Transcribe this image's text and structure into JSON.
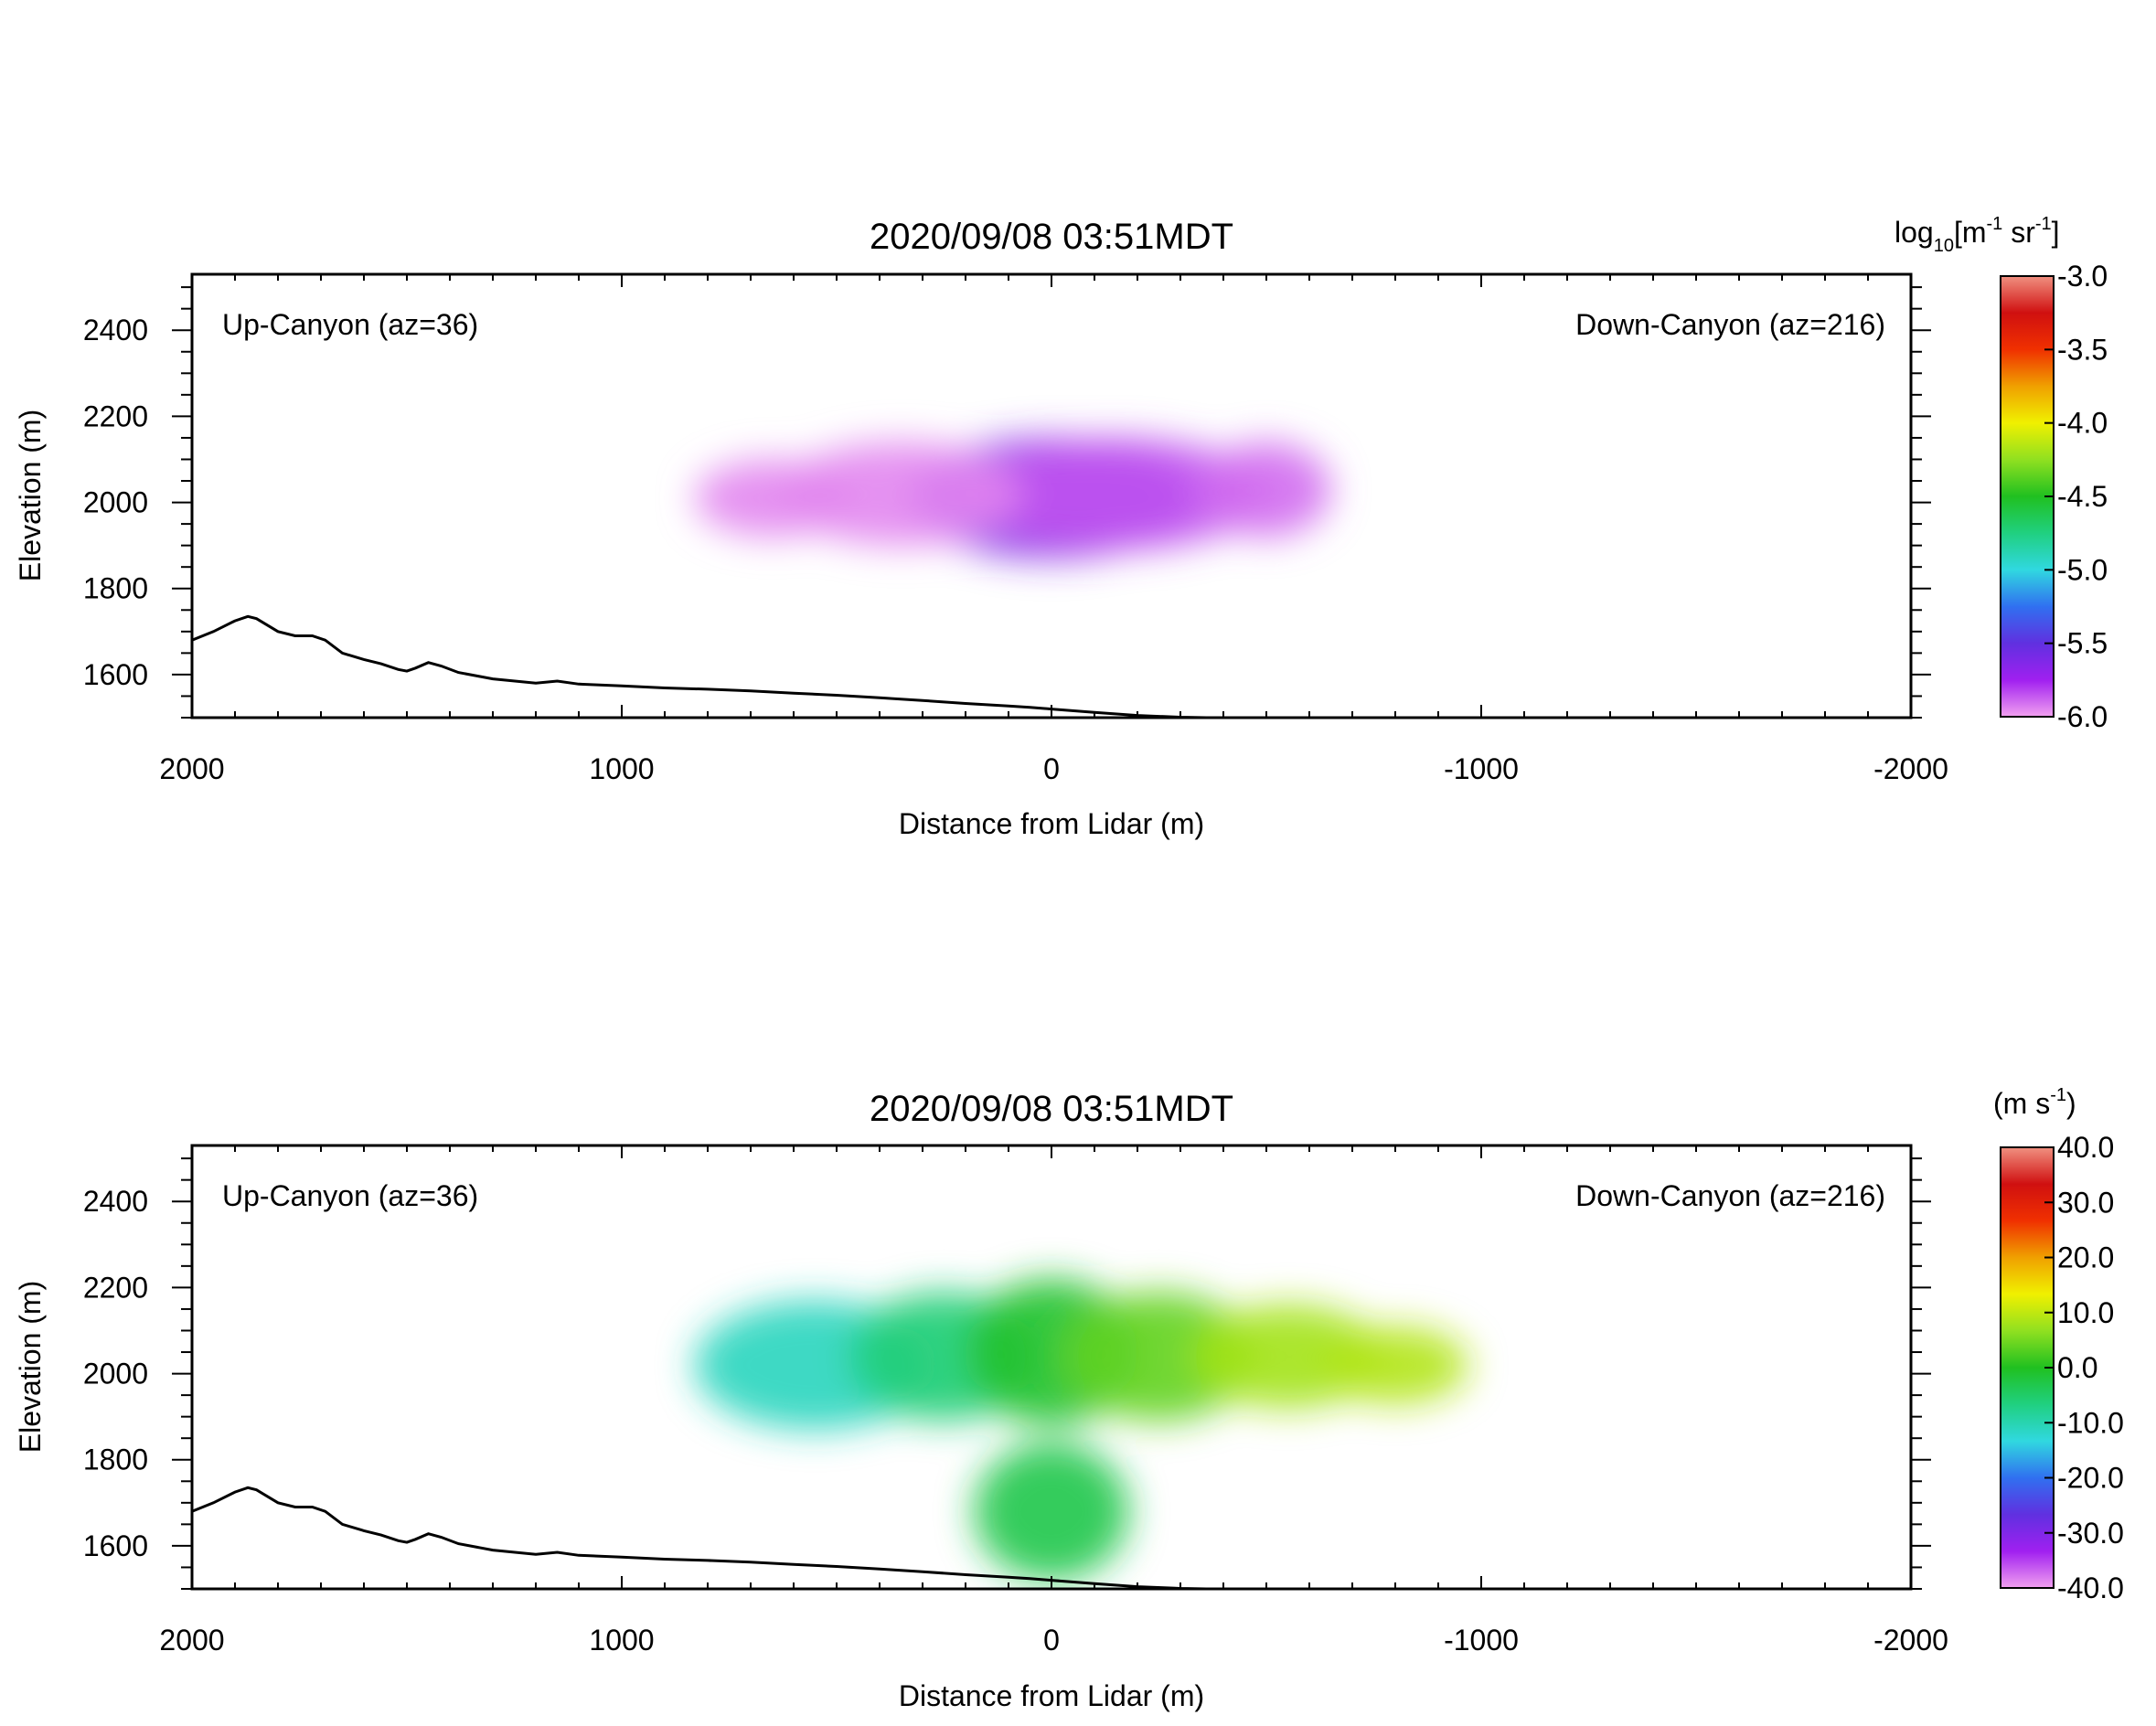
{
  "chart_data": [
    {
      "type": "heatmap",
      "title": "2020/09/08 03:51MDT",
      "xlabel": "Distance from Lidar (m)",
      "ylabel": "Elevation (m)",
      "xlim": [
        2000,
        -2000
      ],
      "ylim": [
        1500,
        2530
      ],
      "xticks": [
        "2000",
        "1000",
        "0",
        "-1000",
        "-2000"
      ],
      "xtick_values": [
        2000,
        1000,
        0,
        -1000,
        -2000
      ],
      "yticks": [
        "1600",
        "1800",
        "2000",
        "2200",
        "2400"
      ],
      "ytick_values": [
        1600,
        1800,
        2000,
        2200,
        2400
      ],
      "annotation_left": "Up-Canyon (az=36)",
      "annotation_right": "Down-Canyon (az=216)",
      "colorbar": {
        "unit_prefix": "log",
        "unit_subscript": "10",
        "unit_main": "[m",
        "unit_exp1": "-1",
        "unit_mid": " sr",
        "unit_exp2": "-1",
        "unit_end": "]",
        "ticks": [
          "-3.0",
          "-3.5",
          "-4.0",
          "-4.5",
          "-5.0",
          "-5.5",
          "-6.0"
        ],
        "range": [
          -6.0,
          -3.0
        ]
      },
      "colormap": [
        "#f2a0f0",
        "#a020f0",
        "#6030e0",
        "#3070f0",
        "#30d8e0",
        "#20d080",
        "#20c020",
        "#90e020",
        "#f0f000",
        "#f0a000",
        "#f03000",
        "#d01010",
        "#f09080"
      ],
      "blobs": [
        {
          "x": 0,
          "y": 2010,
          "rx": 330,
          "ry": 140,
          "value": -5.6
        },
        {
          "x": -150,
          "y": 2020,
          "rx": 350,
          "ry": 130,
          "value": -5.85
        },
        {
          "x": 350,
          "y": 2020,
          "rx": 280,
          "ry": 120,
          "value": -5.95
        },
        {
          "x": 650,
          "y": 2010,
          "rx": 180,
          "ry": 90,
          "value": -5.95
        },
        {
          "x": -500,
          "y": 2030,
          "rx": 150,
          "ry": 110,
          "value": -5.9
        }
      ]
    },
    {
      "type": "heatmap",
      "title": "2020/09/08 03:51MDT",
      "xlabel": "Distance from Lidar (m)",
      "ylabel": "Elevation (m)",
      "xlim": [
        2000,
        -2000
      ],
      "ylim": [
        1500,
        2530
      ],
      "xticks": [
        "2000",
        "1000",
        "0",
        "-1000",
        "-2000"
      ],
      "xtick_values": [
        2000,
        1000,
        0,
        -1000,
        -2000
      ],
      "yticks": [
        "1600",
        "1800",
        "2000",
        "2200",
        "2400"
      ],
      "ytick_values": [
        1600,
        1800,
        2000,
        2200,
        2400
      ],
      "annotation_left": "Up-Canyon (az=36)",
      "annotation_right": "Down-Canyon (az=216)",
      "colorbar": {
        "unit_prefix": "(m s",
        "unit_exp1": "-1",
        "unit_end": ")",
        "ticks": [
          "40.0",
          "30.0",
          "20.0",
          "10.0",
          "0.0",
          "-10.0",
          "-20.0",
          "-30.0",
          "-40.0"
        ],
        "range": [
          -40.0,
          40.0
        ]
      },
      "colormap": [
        "#f2a0f0",
        "#a020f0",
        "#6030e0",
        "#3070f0",
        "#30d8e0",
        "#20d080",
        "#20c020",
        "#90e020",
        "#f0f000",
        "#f0a000",
        "#f03000",
        "#d01010",
        "#f09080"
      ],
      "blobs": [
        {
          "x": 550,
          "y": 2020,
          "rx": 280,
          "ry": 150,
          "value": -11
        },
        {
          "x": 250,
          "y": 2040,
          "rx": 220,
          "ry": 150,
          "value": -6
        },
        {
          "x": 0,
          "y": 2050,
          "rx": 200,
          "ry": 170,
          "value": -1
        },
        {
          "x": -250,
          "y": 2040,
          "rx": 220,
          "ry": 150,
          "value": 4
        },
        {
          "x": -550,
          "y": 2040,
          "rx": 220,
          "ry": 120,
          "value": 8
        },
        {
          "x": -800,
          "y": 2020,
          "rx": 170,
          "ry": 90,
          "value": 9
        },
        {
          "x": 0,
          "y": 1680,
          "rx": 180,
          "ry": 160,
          "value": -3
        }
      ]
    }
  ],
  "terrain": {
    "x": [
      2000,
      1950,
      1900,
      1870,
      1850,
      1800,
      1760,
      1720,
      1690,
      1650,
      1600,
      1560,
      1520,
      1500,
      1480,
      1450,
      1420,
      1380,
      1300,
      1200,
      1150,
      1100,
      1000,
      900,
      800,
      700,
      600,
      500,
      400,
      300,
      200,
      100,
      50,
      0,
      -100,
      -200,
      -300,
      -360
    ],
    "y": [
      1680,
      1700,
      1725,
      1735,
      1730,
      1700,
      1690,
      1690,
      1680,
      1650,
      1635,
      1625,
      1612,
      1608,
      1615,
      1628,
      1620,
      1605,
      1590,
      1580,
      1585,
      1578,
      1574,
      1569,
      1566,
      1562,
      1557,
      1552,
      1546,
      1540,
      1533,
      1527,
      1524,
      1520,
      1512,
      1505,
      1501,
      1500
    ]
  }
}
